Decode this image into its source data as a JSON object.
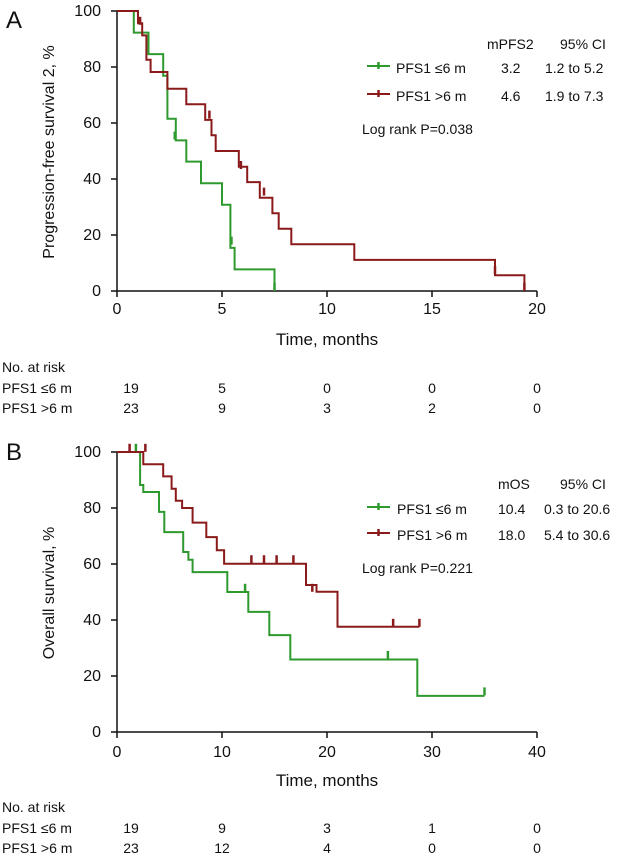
{
  "colors": {
    "green": "#2e9a2e",
    "red": "#8b1a1a",
    "axis": "#111111"
  },
  "chart_data": [
    {
      "type": "line",
      "panel_label": "A",
      "ylabel": "Progression-free survival 2, %",
      "xlabel": "Time, months",
      "xlim": [
        0,
        20
      ],
      "ylim": [
        0,
        100
      ],
      "xticks": [
        "0",
        "5",
        "10",
        "15",
        "20"
      ],
      "yticks": [
        "0",
        "20",
        "40",
        "60",
        "80",
        "100"
      ],
      "legend_header": [
        "mPFS2",
        "95% CI"
      ],
      "series": [
        {
          "name": "PFS1 ≤6 m",
          "color_key": "green",
          "median": "3.2",
          "ci": "1.2 to 5.2",
          "steps": [
            [
              0,
              100
            ],
            [
              0.8,
              100
            ],
            [
              0.8,
              92.3
            ],
            [
              1.5,
              92.3
            ],
            [
              1.5,
              84.6
            ],
            [
              2.2,
              84.6
            ],
            [
              2.2,
              76.9
            ],
            [
              2.4,
              76.9
            ],
            [
              2.4,
              61.5
            ],
            [
              2.8,
              61.5
            ],
            [
              2.8,
              53.8
            ],
            [
              3.3,
              53.8
            ],
            [
              3.3,
              46.2
            ],
            [
              4.0,
              46.2
            ],
            [
              4.0,
              38.5
            ],
            [
              5.0,
              38.5
            ],
            [
              5.0,
              30.8
            ],
            [
              5.4,
              30.8
            ],
            [
              5.4,
              15.4
            ],
            [
              5.6,
              15.4
            ],
            [
              5.6,
              7.7
            ],
            [
              7.5,
              7.7
            ],
            [
              7.5,
              0
            ]
          ],
          "censors": [
            [
              2.75,
              55.5
            ],
            [
              5.45,
              18.0
            ],
            [
              7.5,
              1.5
            ]
          ]
        },
        {
          "name": "PFS1 >6 m",
          "color_key": "red",
          "median": "4.6",
          "ci": "1.9 to 7.3",
          "steps": [
            [
              0,
              100
            ],
            [
              1.0,
              100
            ],
            [
              1.0,
              95.6
            ],
            [
              1.2,
              95.6
            ],
            [
              1.2,
              91.3
            ],
            [
              1.4,
              91.3
            ],
            [
              1.4,
              82.6
            ],
            [
              1.6,
              82.6
            ],
            [
              1.6,
              78.2
            ],
            [
              2.4,
              78.2
            ],
            [
              2.4,
              72.2
            ],
            [
              3.3,
              72.2
            ],
            [
              3.3,
              66.7
            ],
            [
              4.2,
              66.7
            ],
            [
              4.2,
              61.1
            ],
            [
              4.5,
              61.1
            ],
            [
              4.5,
              55.6
            ],
            [
              4.7,
              55.6
            ],
            [
              4.7,
              50.0
            ],
            [
              5.8,
              50.0
            ],
            [
              5.8,
              44.4
            ],
            [
              6.2,
              44.4
            ],
            [
              6.2,
              38.9
            ],
            [
              6.8,
              38.9
            ],
            [
              6.8,
              33.3
            ],
            [
              7.4,
              33.3
            ],
            [
              7.4,
              27.8
            ],
            [
              7.7,
              27.8
            ],
            [
              7.7,
              22.2
            ],
            [
              8.3,
              22.2
            ],
            [
              8.3,
              16.7
            ],
            [
              11.3,
              16.7
            ],
            [
              11.3,
              11.1
            ],
            [
              18.0,
              11.1
            ],
            [
              18.0,
              5.6
            ],
            [
              19.4,
              5.6
            ],
            [
              19.4,
              0
            ]
          ],
          "censors": [
            [
              1.1,
              96.5
            ],
            [
              4.4,
              63.0
            ],
            [
              5.9,
              45.0
            ],
            [
              7.0,
              35.5
            ],
            [
              18.0,
              7.5
            ],
            [
              19.4,
              1.5
            ]
          ]
        }
      ],
      "annotation": "Log rank P=0.038",
      "at_risk": {
        "title": "No. at risk",
        "rows": [
          {
            "label": "PFS1 ≤6 m",
            "values": [
              "19",
              "5",
              "0",
              "0",
              "0"
            ]
          },
          {
            "label": "PFS1 >6 m",
            "values": [
              "23",
              "9",
              "3",
              "2",
              "0"
            ]
          }
        ]
      }
    },
    {
      "type": "line",
      "panel_label": "B",
      "ylabel": "Overall survival, %",
      "xlabel": "Time, months",
      "xlim": [
        0,
        40
      ],
      "ylim": [
        0,
        100
      ],
      "xticks": [
        "0",
        "10",
        "20",
        "30",
        "40"
      ],
      "yticks": [
        "0",
        "20",
        "40",
        "60",
        "80",
        "100"
      ],
      "legend_header": [
        "mOS",
        "95% CI"
      ],
      "series": [
        {
          "name": "PFS1 ≤6 m",
          "color_key": "green",
          "median": "10.4",
          "ci": "0.3 to 20.6",
          "steps": [
            [
              0,
              100
            ],
            [
              2.2,
              100
            ],
            [
              2.2,
              88.2
            ],
            [
              2.5,
              88.2
            ],
            [
              2.5,
              85.7
            ],
            [
              4.0,
              85.7
            ],
            [
              4.0,
              78.6
            ],
            [
              4.5,
              78.6
            ],
            [
              4.5,
              71.4
            ],
            [
              6.3,
              71.4
            ],
            [
              6.3,
              64.3
            ],
            [
              6.8,
              64.3
            ],
            [
              6.8,
              61.5
            ],
            [
              7.2,
              61.5
            ],
            [
              7.2,
              57.1
            ],
            [
              10.5,
              57.1
            ],
            [
              10.5,
              50.0
            ],
            [
              12.5,
              50.0
            ],
            [
              12.5,
              42.9
            ],
            [
              14.5,
              42.9
            ],
            [
              14.5,
              34.6
            ],
            [
              16.5,
              34.6
            ],
            [
              16.5,
              25.9
            ],
            [
              28.6,
              25.9
            ],
            [
              28.6,
              12.9
            ],
            [
              35,
              12.9
            ]
          ],
          "censors": [
            [
              1.8,
              101.5
            ],
            [
              12.2,
              51.5
            ],
            [
              25.8,
              27.5
            ],
            [
              35,
              14.5
            ]
          ]
        },
        {
          "name": "PFS1 >6 m",
          "color_key": "red",
          "median": "18.0",
          "ci": "5.4 to 30.6",
          "steps": [
            [
              0,
              100
            ],
            [
              2.5,
              100
            ],
            [
              2.5,
              95.6
            ],
            [
              4.4,
              95.6
            ],
            [
              4.4,
              91.3
            ],
            [
              5.2,
              91.3
            ],
            [
              5.2,
              86.9
            ],
            [
              5.6,
              86.9
            ],
            [
              5.6,
              82.6
            ],
            [
              6.2,
              82.6
            ],
            [
              6.2,
              80.0
            ],
            [
              7.2,
              80.0
            ],
            [
              7.2,
              74.8
            ],
            [
              8.5,
              74.8
            ],
            [
              8.5,
              69.6
            ],
            [
              9.5,
              69.6
            ],
            [
              9.5,
              64.9
            ],
            [
              10.2,
              64.9
            ],
            [
              10.2,
              60.1
            ],
            [
              18.0,
              60.1
            ],
            [
              18.0,
              52.5
            ],
            [
              19.0,
              52.5
            ],
            [
              19.0,
              50.1
            ],
            [
              21.0,
              50.1
            ],
            [
              21.0,
              37.6
            ],
            [
              28.8,
              37.6
            ]
          ],
          "censors": [
            [
              1.2,
              101.5
            ],
            [
              2.7,
              101.5
            ],
            [
              12.8,
              61.7
            ],
            [
              14.0,
              61.7
            ],
            [
              15.2,
              61.7
            ],
            [
              16.8,
              61.7
            ],
            [
              18.6,
              51.5
            ],
            [
              26.3,
              39.0
            ],
            [
              28.8,
              39.0
            ]
          ]
        }
      ],
      "annotation": "Log rank P=0.221",
      "at_risk": {
        "title": "No. at risk",
        "rows": [
          {
            "label": "PFS1 ≤6 m",
            "values": [
              "19",
              "9",
              "3",
              "1",
              "0"
            ]
          },
          {
            "label": "PFS1 >6 m",
            "values": [
              "23",
              "12",
              "4",
              "0",
              "0"
            ]
          }
        ]
      }
    }
  ]
}
